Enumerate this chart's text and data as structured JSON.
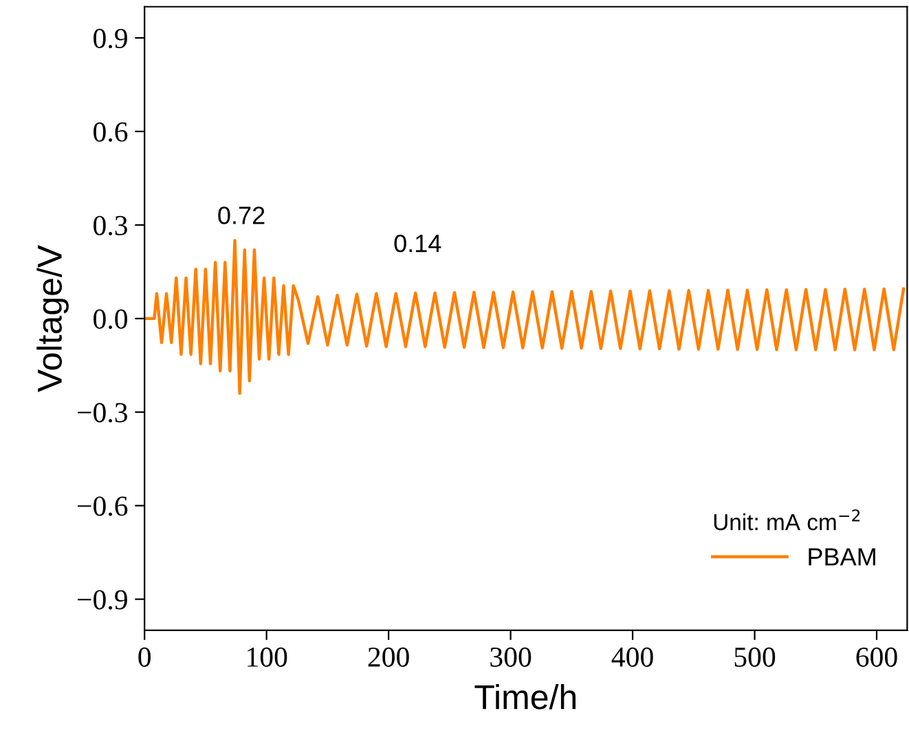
{
  "chart_data": {
    "type": "line",
    "xlabel": "Time/h",
    "ylabel": "Voltage/V",
    "xlim": [
      0,
      625
    ],
    "ylim": [
      -1.0,
      1.0
    ],
    "xticks": [
      0,
      100,
      200,
      300,
      400,
      500,
      600
    ],
    "yticks": [
      {
        "value": -0.9,
        "label": "−0.9"
      },
      {
        "value": -0.6,
        "label": "−0.6"
      },
      {
        "value": -0.3,
        "label": "−0.3"
      },
      {
        "value": 0.0,
        "label": "0.0"
      },
      {
        "value": 0.3,
        "label": "0.3"
      },
      {
        "value": 0.6,
        "label": "0.6"
      },
      {
        "value": 0.9,
        "label": "0.9"
      }
    ],
    "grid": false,
    "legend": "bottom right",
    "marker": "none",
    "line_style": "solid",
    "annotations": [
      "0.72",
      "0.14"
    ],
    "legend_title": "Unit: mA cm$^{−2}$",
    "series": [
      {
        "name": "PBAM",
        "color": "#ff7f00",
        "x": [
          0,
          4,
          8,
          10,
          14,
          18,
          22,
          26,
          30,
          34,
          38,
          42,
          46,
          50,
          54,
          58,
          62,
          66,
          70,
          74,
          78,
          82,
          86,
          90,
          94,
          98,
          102,
          106,
          110,
          114,
          118,
          122,
          126,
          134,
          142,
          150,
          158,
          166,
          174,
          182,
          190,
          198,
          206,
          214,
          222,
          230,
          238,
          246,
          254,
          262,
          270,
          278,
          286,
          294,
          302,
          310,
          318,
          326,
          334,
          342,
          350,
          358,
          366,
          374,
          382,
          390,
          398,
          406,
          414,
          422,
          430,
          438,
          446,
          454,
          462,
          470,
          478,
          486,
          494,
          502,
          510,
          518,
          526,
          534,
          542,
          550,
          558,
          566,
          574,
          582,
          590,
          598,
          606,
          614,
          622
        ],
        "values": [
          0,
          0,
          0,
          0.08,
          -0.077,
          0.08,
          -0.077,
          0.13,
          -0.115,
          0.13,
          -0.115,
          0.158,
          -0.145,
          0.158,
          -0.145,
          0.18,
          -0.168,
          0.18,
          -0.168,
          0.25,
          -0.24,
          0.22,
          -0.2,
          0.22,
          -0.13,
          0.13,
          -0.13,
          0.13,
          -0.115,
          0.105,
          -0.115,
          0.105,
          0.06,
          -0.08,
          0.07,
          -0.085,
          0.075,
          -0.085,
          0.078,
          -0.088,
          0.08,
          -0.09,
          0.08,
          -0.09,
          0.082,
          -0.09,
          0.082,
          -0.092,
          0.083,
          -0.092,
          0.084,
          -0.093,
          0.084,
          -0.093,
          0.085,
          -0.094,
          0.086,
          -0.094,
          0.086,
          -0.095,
          0.087,
          -0.095,
          0.087,
          -0.096,
          0.088,
          -0.096,
          0.088,
          -0.097,
          0.089,
          -0.097,
          0.089,
          -0.098,
          0.09,
          -0.098,
          0.09,
          -0.098,
          0.091,
          -0.099,
          0.091,
          -0.099,
          0.092,
          -0.1,
          0.092,
          -0.1,
          0.093,
          -0.1,
          0.093,
          -0.1,
          0.094,
          -0.1,
          0.094,
          -0.1,
          0.095,
          -0.1,
          0.095
        ]
      }
    ]
  }
}
